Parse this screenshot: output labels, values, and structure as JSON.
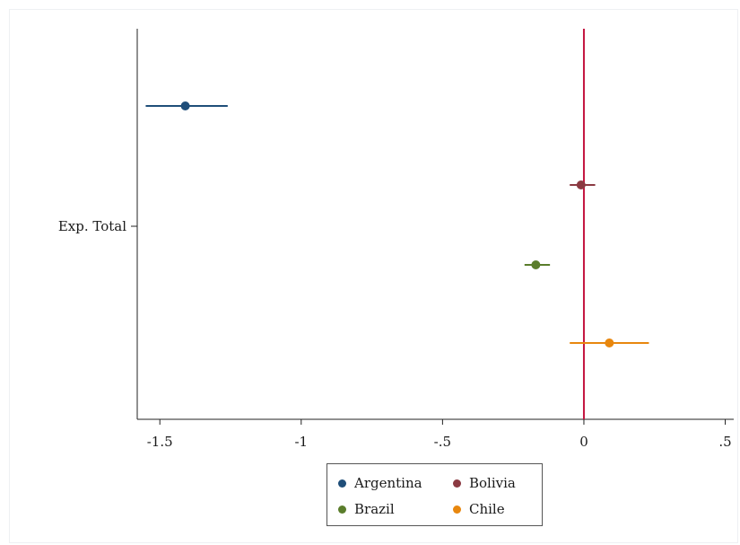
{
  "chart_data": {
    "type": "scatter",
    "subtype": "coefficient-plot",
    "title": "",
    "xlabel": "",
    "ylabel": "",
    "y_category": "Exp. Total",
    "xlim": [
      -1.58,
      0.53
    ],
    "xticks": [
      -1.5,
      -1,
      -0.5,
      0,
      0.5
    ],
    "xtick_labels": [
      "-1.5",
      "-1",
      "-.5",
      "0",
      ".5"
    ],
    "reference_line": {
      "x": 0,
      "color": "#c4143f"
    },
    "grid": false,
    "legend_position": "bottom",
    "series": [
      {
        "name": "Argentina",
        "color": "#1f4e79",
        "estimate": -1.41,
        "ci": [
          -1.55,
          -1.26
        ]
      },
      {
        "name": "Bolivia",
        "color": "#8b3a42",
        "estimate": -0.01,
        "ci": [
          -0.05,
          0.04
        ]
      },
      {
        "name": "Brazil",
        "color": "#5a7d2b",
        "estimate": -0.17,
        "ci": [
          -0.21,
          -0.12
        ]
      },
      {
        "name": "Chile",
        "color": "#e8870e",
        "estimate": 0.09,
        "ci": [
          -0.05,
          0.23
        ]
      }
    ]
  }
}
